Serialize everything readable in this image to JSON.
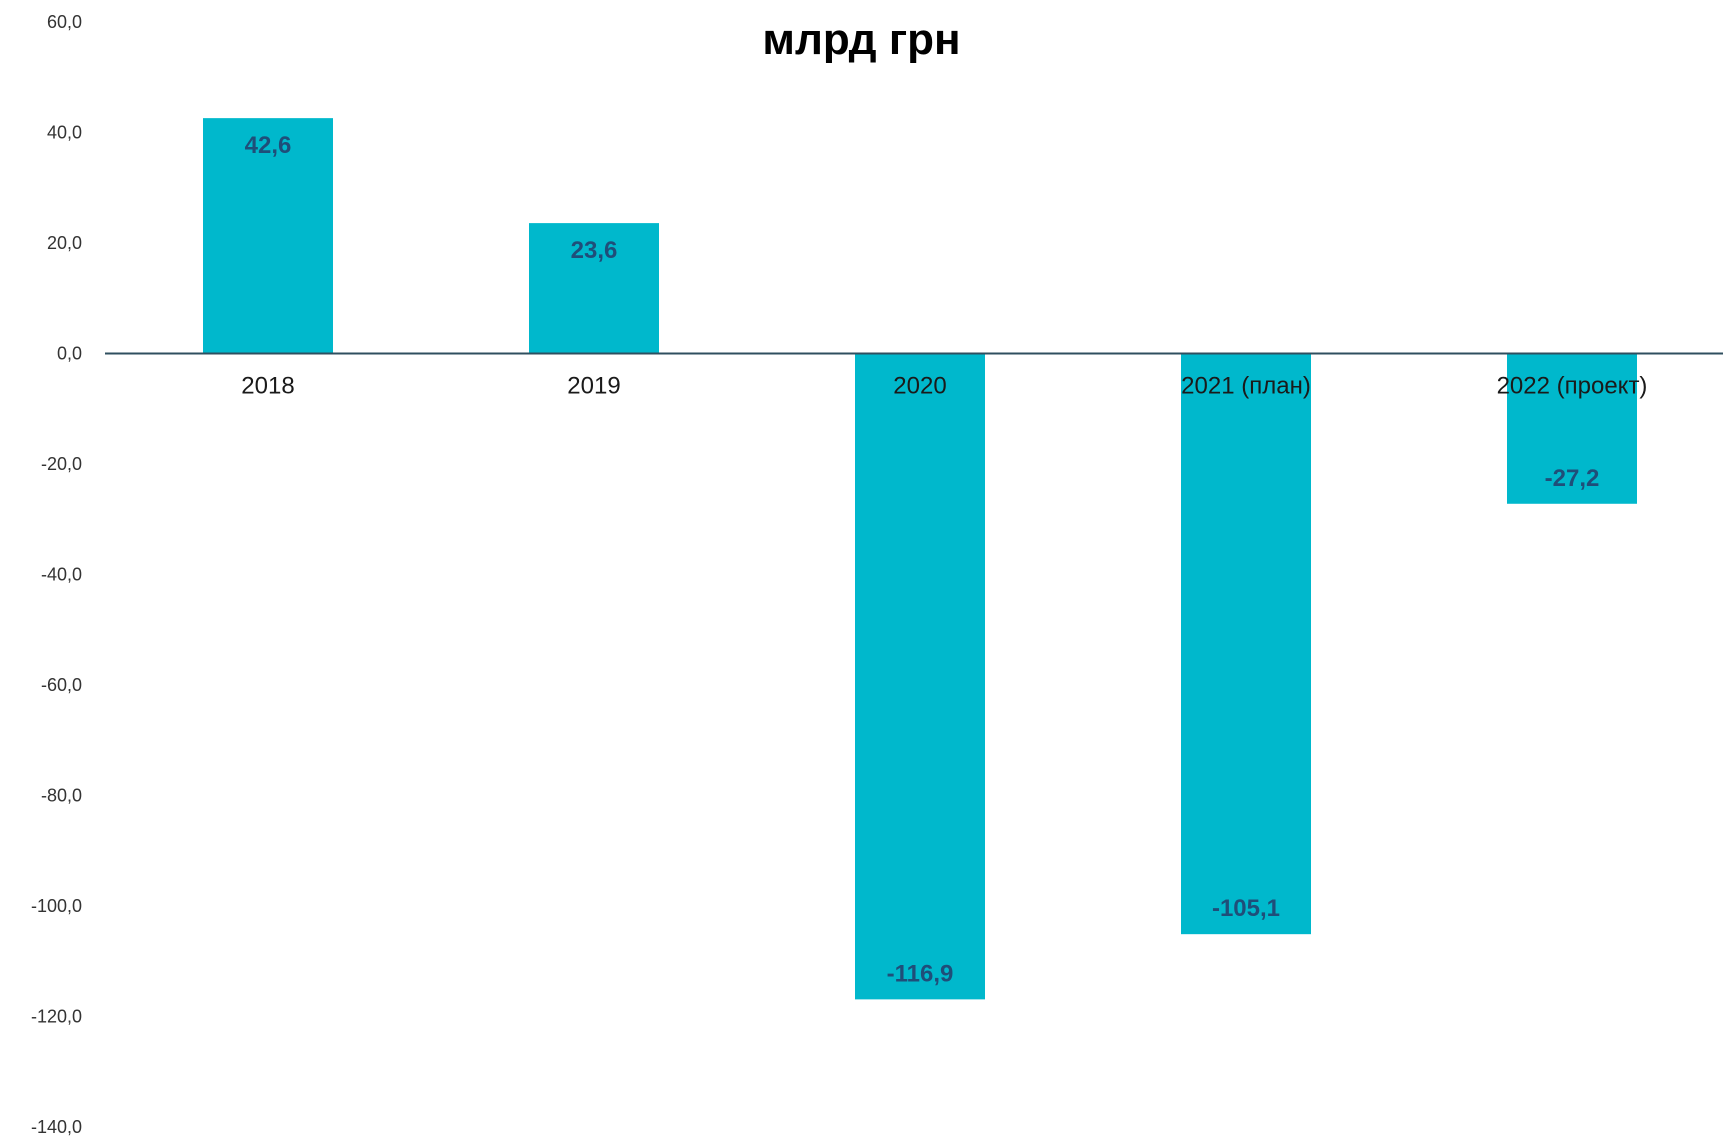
{
  "chart_data": {
    "type": "bar",
    "title": "млрд грн",
    "categories": [
      "2018",
      "2019",
      "2020",
      "2021 (план)",
      "2022 (проект)"
    ],
    "values": [
      42.6,
      23.6,
      -116.9,
      -105.1,
      -27.2
    ],
    "value_labels": [
      "42,6",
      "23,6",
      "-116,9",
      "-105,1",
      "-27,2"
    ],
    "y_ticks": [
      "60,0",
      "40,0",
      "20,0",
      "0,0",
      "-20,0",
      "-40,0",
      "-60,0",
      "-80,0",
      "-100,0",
      "-120,0",
      "-140,0"
    ],
    "ylim": [
      -140,
      60
    ],
    "grid": false,
    "legend": "none",
    "colors": {
      "bar": "#00b8cc",
      "axis": "#2f4f5f",
      "data_label": "#1f4e79"
    }
  }
}
